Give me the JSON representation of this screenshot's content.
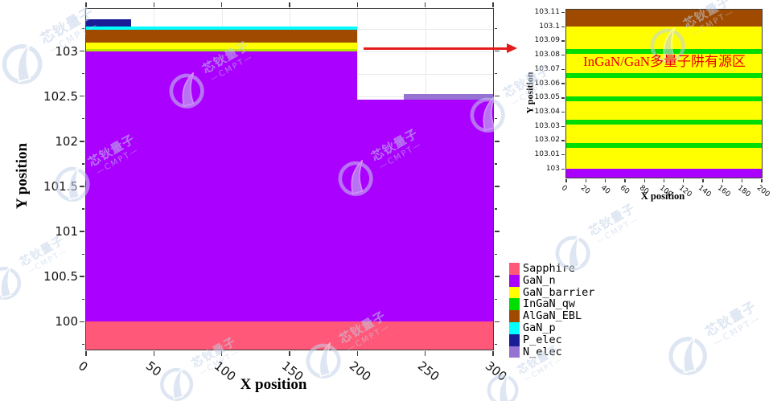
{
  "materials": {
    "Sapphire": "#FF5878",
    "GaN_n": "#AA00FF",
    "GaN_barrier": "#FFFF00",
    "InGaN_qw": "#00DD00",
    "AlGaN_EBL": "#A04A00",
    "GaN_p": "#00FFFF",
    "P_elec": "#1B1B96",
    "N_elec": "#9673D2"
  },
  "legend": {
    "items": [
      {
        "label": "Sapphire",
        "material": "Sapphire"
      },
      {
        "label": "GaN_n",
        "material": "GaN_n"
      },
      {
        "label": "GaN_barrier",
        "material": "GaN_barrier"
      },
      {
        "label": "InGaN_qw",
        "material": "InGaN_qw"
      },
      {
        "label": "AlGaN_EBL",
        "material": "AlGaN_EBL"
      },
      {
        "label": "GaN_p",
        "material": "GaN_p"
      },
      {
        "label": "P_elec",
        "material": "P_elec"
      },
      {
        "label": "N_elec",
        "material": "N_elec"
      }
    ]
  },
  "watermark": {
    "text": "芯钬量子",
    "subtext": "—CMPT—",
    "color": "#c3d2e8",
    "instances": [
      [
        62,
        60,
        1.15
      ],
      [
        860,
        40,
        1.0
      ],
      [
        262,
        96,
        1.0
      ],
      [
        636,
        126,
        1.0
      ],
      [
        120,
        212,
        1.0
      ],
      [
        472,
        205,
        1.0
      ],
      [
        34,
        336,
        0.95
      ],
      [
        742,
        298,
        1.0
      ],
      [
        888,
        424,
        1.1
      ],
      [
        432,
        432,
        1.0
      ],
      [
        248,
        462,
        0.95
      ],
      [
        652,
        470,
        0.9
      ]
    ]
  },
  "chart_data": [
    {
      "id": "main",
      "type": "area",
      "title": "",
      "xlabel": "X position",
      "ylabel": "Y position",
      "xlim": [
        0,
        300
      ],
      "ylim": [
        99.69,
        103.47
      ],
      "grid": true,
      "grid_x": [
        50,
        100,
        150,
        200,
        250
      ],
      "grid_y": [
        99.75,
        100,
        100.25,
        100.5,
        100.75,
        101,
        101.25,
        101.5,
        101.75,
        102,
        102.25,
        102.5,
        102.75,
        103,
        103.25
      ],
      "x_ticks": [
        {
          "v": 0,
          "label": "0"
        },
        {
          "v": 50,
          "label": "50"
        },
        {
          "v": 100,
          "label": "100"
        },
        {
          "v": 150,
          "label": "150"
        },
        {
          "v": 200,
          "label": "200"
        },
        {
          "v": 250,
          "label": "250"
        },
        {
          "v": 300,
          "label": "300"
        }
      ],
      "y_ticks": [
        {
          "v": 100,
          "label": "100"
        },
        {
          "v": 100.5,
          "label": "100.5"
        },
        {
          "v": 101,
          "label": "101"
        },
        {
          "v": 101.5,
          "label": "101.5"
        },
        {
          "v": 102,
          "label": "102"
        },
        {
          "v": 102.5,
          "label": "102.5"
        },
        {
          "v": 103,
          "label": "103"
        }
      ],
      "y_minor_ticks": [
        99.75,
        100.25,
        100.75,
        101.25,
        101.75,
        102.25,
        102.75,
        103.25
      ],
      "ticks_top": true,
      "ticks_right": true,
      "regions": [
        {
          "material": "Sapphire",
          "x": [
            0,
            300
          ],
          "y": [
            99.69,
            100.0
          ]
        },
        {
          "material": "GaN_n",
          "x": [
            0,
            300
          ],
          "y": [
            100.0,
            102.46
          ]
        },
        {
          "material": "GaN_n",
          "x": [
            0,
            200
          ],
          "y": [
            102.46,
            103.0
          ]
        },
        {
          "material": "N_elec",
          "x": [
            234,
            300
          ],
          "y": [
            102.46,
            102.525
          ]
        },
        {
          "material": "InGaN_qw",
          "x": [
            0,
            200
          ],
          "y": [
            103.0,
            103.021
          ],
          "color": "#B5E800"
        },
        {
          "material": "GaN_barrier",
          "x": [
            0,
            200
          ],
          "y": [
            103.021,
            103.096
          ]
        },
        {
          "material": "AlGaN_EBL",
          "x": [
            0,
            200
          ],
          "y": [
            103.096,
            103.237
          ]
        },
        {
          "material": "GaN_p",
          "x": [
            0,
            200
          ],
          "y": [
            103.237,
            103.27
          ]
        },
        {
          "material": "P_elec",
          "x": [
            0,
            33
          ],
          "y": [
            103.27,
            103.352
          ]
        }
      ]
    },
    {
      "id": "inset",
      "type": "area",
      "title": "",
      "xlabel": "X position",
      "ylabel": "Y position",
      "annotation": "InGaN/GaN多量子阱有源区",
      "xlim": [
        0,
        200
      ],
      "ylim": [
        102.994,
        103.112
      ],
      "grid": false,
      "grid_x": [],
      "grid_y": [],
      "x_ticks": [
        {
          "v": 0,
          "label": "0"
        },
        {
          "v": 20,
          "label": "20"
        },
        {
          "v": 40,
          "label": "40"
        },
        {
          "v": 60,
          "label": "60"
        },
        {
          "v": 80,
          "label": "80"
        },
        {
          "v": 100,
          "label": "100"
        },
        {
          "v": 120,
          "label": "120"
        },
        {
          "v": 140,
          "label": "140"
        },
        {
          "v": 160,
          "label": "160"
        },
        {
          "v": 180,
          "label": "180"
        },
        {
          "v": 200,
          "label": "200"
        }
      ],
      "y_ticks": [
        {
          "v": 103,
          "label": "103"
        },
        {
          "v": 103.01,
          "label": "103.01"
        },
        {
          "v": 103.02,
          "label": "103.02"
        },
        {
          "v": 103.03,
          "label": "103.03"
        },
        {
          "v": 103.04,
          "label": "103.04"
        },
        {
          "v": 103.05,
          "label": "103.05"
        },
        {
          "v": 103.06,
          "label": "103.06"
        },
        {
          "v": 103.07,
          "label": "103.07"
        },
        {
          "v": 103.08,
          "label": "103.08"
        },
        {
          "v": 103.09,
          "label": "103.09"
        },
        {
          "v": 103.1,
          "label": "103.1"
        },
        {
          "v": 103.11,
          "label": "103.11"
        }
      ],
      "y_minor_ticks": [],
      "ticks_top": false,
      "ticks_right": false,
      "regions": [
        {
          "material": "GaN_n",
          "x": [
            0,
            200
          ],
          "y": [
            102.994,
            103.0
          ]
        },
        {
          "material": "GaN_barrier",
          "x": [
            0,
            200
          ],
          "y": [
            103.0,
            103.1
          ]
        },
        {
          "material": "InGaN_qw",
          "x": [
            0,
            200
          ],
          "y": [
            103.0148,
            103.0182
          ]
        },
        {
          "material": "InGaN_qw",
          "x": [
            0,
            200
          ],
          "y": [
            103.0313,
            103.0347
          ]
        },
        {
          "material": "InGaN_qw",
          "x": [
            0,
            200
          ],
          "y": [
            103.0478,
            103.0512
          ]
        },
        {
          "material": "InGaN_qw",
          "x": [
            0,
            200
          ],
          "y": [
            103.0643,
            103.0677
          ]
        },
        {
          "material": "InGaN_qw",
          "x": [
            0,
            200
          ],
          "y": [
            103.0808,
            103.0842
          ]
        },
        {
          "material": "AlGaN_EBL",
          "x": [
            0,
            200
          ],
          "y": [
            103.1,
            103.112
          ]
        }
      ]
    }
  ]
}
